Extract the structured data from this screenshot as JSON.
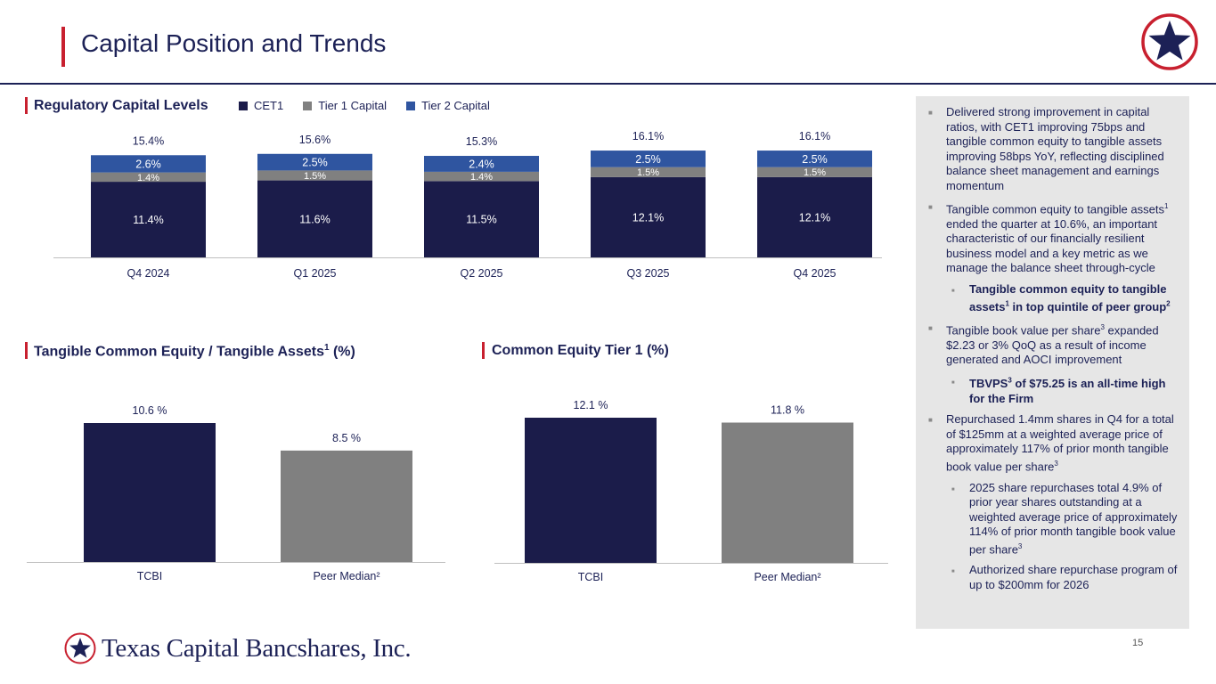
{
  "page": {
    "title": "Capital Position and Trends",
    "page_number": "15",
    "company": "Texas Capital Bancshares, Inc.",
    "colors": {
      "navy": "#1b1c4a",
      "gray": "#808080",
      "blue": "#2f55a0",
      "red": "#c8202f"
    }
  },
  "sections": {
    "regulatory": "Regulatory Capital Levels",
    "tce": {
      "text": "Tangible Common Equity / Tangible Assets",
      "sup": "1",
      "suffix": " (%)"
    },
    "cet1": "Common Equity Tier 1 (%)"
  },
  "legend": [
    {
      "label": "CET1",
      "color": "#1b1c4a"
    },
    {
      "label": "Tier 1 Capital",
      "color": "#808080"
    },
    {
      "label": "Tier 2 Capital",
      "color": "#2f55a0"
    }
  ],
  "chart_data": [
    {
      "type": "bar",
      "stacked": true,
      "title": "Regulatory Capital Levels",
      "categories": [
        "Q4 2024",
        "Q1 2025",
        "Q2 2025",
        "Q3 2025",
        "Q4 2025"
      ],
      "series": [
        {
          "name": "CET1",
          "values": [
            11.4,
            11.6,
            11.5,
            12.1,
            12.1
          ],
          "labels": [
            "11.4%",
            "11.6%",
            "11.5%",
            "12.1%",
            "12.1%"
          ],
          "color": "#1b1c4a"
        },
        {
          "name": "Tier 1 Capital",
          "values": [
            1.4,
            1.5,
            1.4,
            1.5,
            1.5
          ],
          "labels": [
            "1.4%",
            "1.5%",
            "1.4%",
            "1.5%",
            "1.5%"
          ],
          "color": "#808080"
        },
        {
          "name": "Tier 2 Capital",
          "values": [
            2.6,
            2.5,
            2.4,
            2.5,
            2.5
          ],
          "labels": [
            "2.6%",
            "2.5%",
            "2.4%",
            "2.5%",
            "2.5%"
          ],
          "color": "#2f55a0"
        }
      ],
      "totals": [
        "15.4%",
        "15.6%",
        "15.3%",
        "16.1%",
        "16.1%"
      ],
      "legend": "top"
    },
    {
      "type": "bar",
      "title": "Tangible Common Equity / Tangible Assets1 (%)",
      "categories": [
        "TCBI",
        "Peer Median²"
      ],
      "values": [
        10.6,
        8.5
      ],
      "labels": [
        "10.6 %",
        "8.5 %"
      ],
      "colors": [
        "#1b1c4a",
        "#808080"
      ],
      "ylim": [
        0,
        10.6
      ]
    },
    {
      "type": "bar",
      "title": "Common Equity Tier 1 (%)",
      "categories": [
        "TCBI",
        "Peer Median²"
      ],
      "values": [
        12.1,
        11.8
      ],
      "labels": [
        "12.1 %",
        "11.8 %"
      ],
      "colors": [
        "#1b1c4a",
        "#808080"
      ],
      "ylim": [
        3.2,
        12.1
      ]
    }
  ],
  "bullets": [
    {
      "level": 1,
      "html": "Delivered strong improvement in capital ratios, with CET1 improving 75bps and tangible common equity to tangible assets improving 58bps YoY, reflecting disciplined balance sheet management and earnings momentum"
    },
    {
      "level": 1,
      "html": "Tangible common equity to tangible assets<sup>1</sup> ended the quarter at 10.6%, an important characteristic of our financially resilient business model and a key metric as we manage the balance sheet through-cycle"
    },
    {
      "level": 2,
      "html": "<b>Tangible common equity to tangible assets<sup>1</sup> in top quintile of peer group<sup>2</sup></b>"
    },
    {
      "level": 1,
      "html": "Tangible book value per share<sup>3</sup> expanded $2.23 or 3% QoQ as a result of income generated and AOCI improvement"
    },
    {
      "level": 2,
      "html": "<b>TBVPS<sup>3</sup> of $75.25 is an all-time high for the Firm</b>"
    },
    {
      "level": 1,
      "html": "Repurchased 1.4mm shares in Q4 for a total of $125mm at a weighted average price of approximately 117% of prior month tangible book value per share<sup>3</sup>"
    },
    {
      "level": 2,
      "html": "2025 share repurchases total 4.9% of prior year shares outstanding at a weighted average price of approximately 114% of prior month tangible book value per share<sup>3</sup>"
    },
    {
      "level": 2,
      "html": "Authorized share repurchase program of up to $200mm for 2026"
    }
  ]
}
